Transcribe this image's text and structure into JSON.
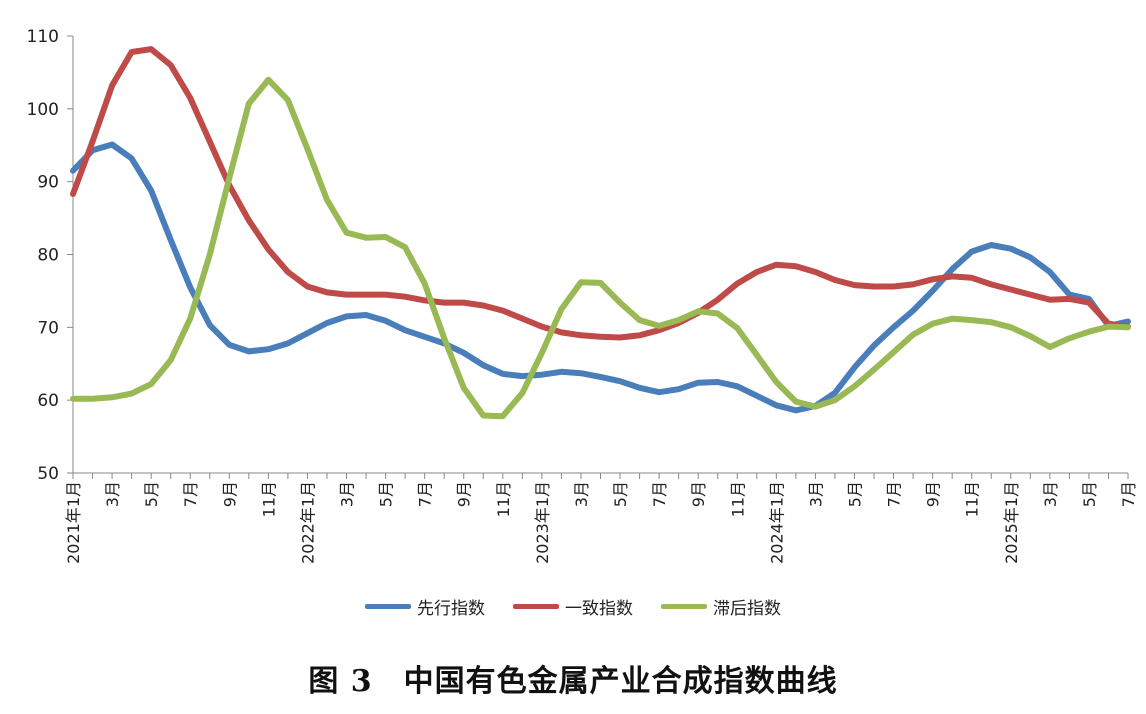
{
  "caption": "图 3　中国有色金属产业合成指数曲线",
  "chart_data": {
    "type": "line",
    "title": "",
    "xlabel": "",
    "ylabel": "",
    "ylim": [
      50,
      110
    ],
    "yticks": [
      50,
      60,
      70,
      80,
      90,
      100,
      110
    ],
    "grid": false,
    "legend": "bottom",
    "x_period": "monthly",
    "tick_labels": [
      "2021年1月",
      "3月",
      "5月",
      "7月",
      "9月",
      "11月",
      "2022年1月",
      "3月",
      "5月",
      "7月",
      "9月",
      "11月",
      "2023年1月",
      "3月",
      "5月",
      "7月",
      "9月",
      "11月",
      "2024年1月",
      "3月",
      "5月",
      "7月",
      "9月",
      "11月",
      "2025年1月",
      "3月",
      "5月",
      "7月"
    ],
    "series": [
      {
        "name": "先行指数",
        "color": "#4a7ebb",
        "values": [
          91.5,
          94.3,
          95.1,
          93.2,
          88.8,
          82,
          75.5,
          70.3,
          67.6,
          66.7,
          67,
          67.8,
          69.2,
          70.6,
          71.5,
          71.7,
          70.9,
          69.6,
          68.7,
          67.8,
          66.5,
          64.8,
          63.6,
          63.3,
          63.5,
          63.9,
          63.7,
          63.2,
          62.6,
          61.7,
          61.1,
          61.5,
          62.4,
          62.5,
          61.9,
          60.6,
          59.3,
          58.6,
          59.2,
          61,
          64.5,
          67.5,
          70,
          72.3,
          75,
          78,
          80.4,
          81.3,
          80.8,
          79.6,
          77.6,
          74.5,
          73.9,
          70.2,
          70.8
        ]
      },
      {
        "name": "一致指数",
        "color": "#be4b48",
        "values": [
          88.3,
          95.5,
          103.2,
          107.8,
          108.2,
          106,
          101.5,
          95.5,
          89.5,
          84.7,
          80.7,
          77.6,
          75.6,
          74.8,
          74.5,
          74.5,
          74.5,
          74.2,
          73.7,
          73.4,
          73.4,
          73,
          72.3,
          71.2,
          70.1,
          69.3,
          68.9,
          68.7,
          68.6,
          68.9,
          69.6,
          70.6,
          72,
          73.8,
          76,
          77.6,
          78.6,
          78.4,
          77.6,
          76.5,
          75.8,
          75.6,
          75.6,
          75.9,
          76.6,
          77,
          76.8,
          75.9,
          75.2,
          74.5,
          73.8,
          73.9,
          73.4,
          70.5,
          70.1
        ]
      },
      {
        "name": "滞后指数",
        "color": "#98b954",
        "values": [
          60.2,
          60.2,
          60.4,
          60.9,
          62.2,
          65.5,
          71.2,
          80,
          90.5,
          100.7,
          104,
          101.2,
          94.5,
          87.5,
          83,
          82.3,
          82.4,
          81,
          76,
          68.5,
          61.7,
          57.9,
          57.8,
          61,
          66.5,
          72.5,
          76.2,
          76.1,
          73.4,
          71,
          70.2,
          71,
          72.2,
          71.9,
          69.9,
          66.2,
          62.5,
          59.8,
          59.1,
          60,
          61.9,
          64.2,
          66.6,
          69,
          70.5,
          71.2,
          71,
          70.7,
          70,
          68.8,
          67.3,
          68.5,
          69.4,
          70.1,
          70
        ]
      }
    ]
  }
}
